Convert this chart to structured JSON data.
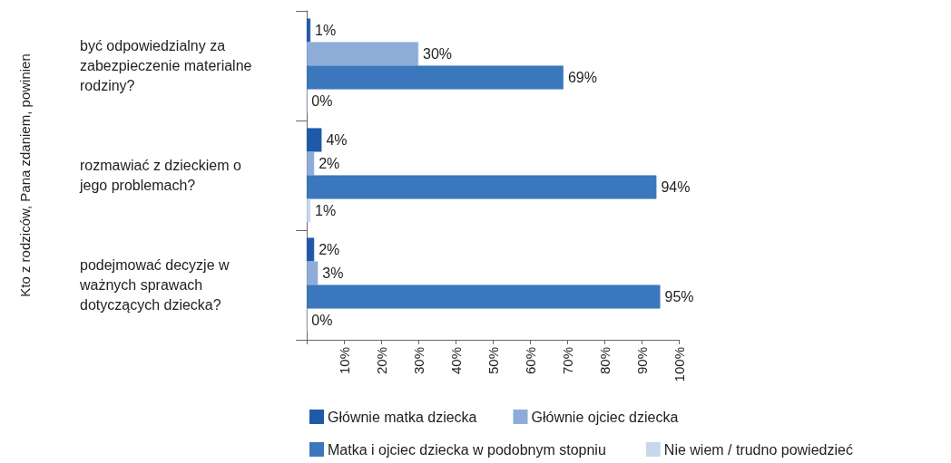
{
  "chart_data": {
    "type": "bar",
    "orientation": "horizontal",
    "ylabel": "Kto z rodziców, Pana zdaniem, powinien",
    "categories": [
      "być odpowiedzialny za zabezpieczenie materialne rodziny?",
      "rozmawiać z dzieckiem o jego problemach?",
      "podejmować decyzje w ważnych sprawach dotyczących dziecka?"
    ],
    "series": [
      {
        "name": "Głównie matka dziecka",
        "color": "#1f5aa8",
        "values": [
          1,
          4,
          2
        ],
        "value_labels": [
          "1%",
          "4%",
          "2%"
        ]
      },
      {
        "name": "Głównie ojciec dziecka",
        "color": "#8eacd8",
        "values": [
          30,
          2,
          3
        ],
        "value_labels": [
          "30%",
          "2%",
          "3%"
        ]
      },
      {
        "name": "Matka i ojciec dziecka w podobnym stopniu",
        "color": "#3b77bd",
        "values": [
          69,
          94,
          95
        ],
        "value_labels": [
          "69%",
          "94%",
          "95%"
        ]
      },
      {
        "name": "Nie wiem / trudno powiedzieć",
        "color": "#c8d8ec",
        "values": [
          0,
          1,
          0
        ],
        "value_labels": [
          "0%",
          "1%",
          "0%"
        ]
      }
    ],
    "xlim": [
      0,
      100
    ],
    "xticks": [
      {
        "value": 0,
        "label": null
      },
      {
        "value": 10,
        "label": "10%"
      },
      {
        "value": 20,
        "label": "20%"
      },
      {
        "value": 30,
        "label": "30%"
      },
      {
        "value": 40,
        "label": "40%"
      },
      {
        "value": 50,
        "label": "50%"
      },
      {
        "value": 60,
        "label": "60%"
      },
      {
        "value": 70,
        "label": "70%"
      },
      {
        "value": 80,
        "label": "80%"
      },
      {
        "value": 90,
        "label": "90%"
      },
      {
        "value": 100,
        "label": "100%"
      }
    ],
    "grid": false,
    "legend": "bottom"
  }
}
